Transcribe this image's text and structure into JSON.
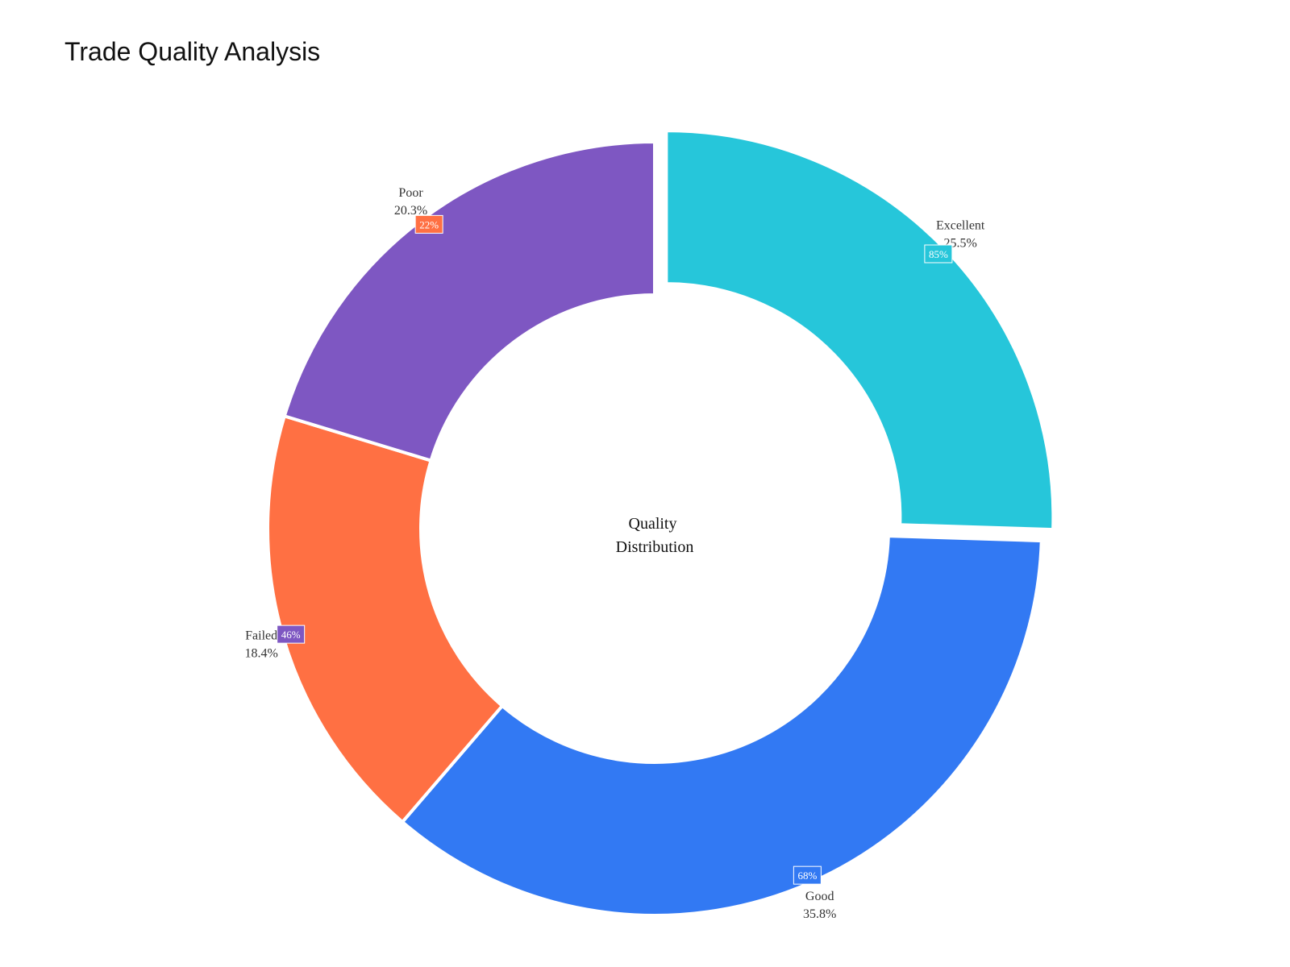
{
  "chart_data": {
    "type": "pie",
    "title": "Trade Quality Analysis",
    "hole_label_lines": [
      "Quality",
      "Distribution"
    ],
    "slices": [
      {
        "name": "Excellent",
        "value": 25.5,
        "pct_label": "25.5%",
        "color": "#26C6DA",
        "pulled": true
      },
      {
        "name": "Good",
        "value": 35.8,
        "pct_label": "35.8%",
        "color": "#3279F3",
        "pulled": false
      },
      {
        "name": "Failed",
        "value": 18.4,
        "pct_label": "18.4%",
        "color": "#FF7043",
        "pulled": false
      },
      {
        "name": "Poor",
        "value": 20.3,
        "pct_label": "20.3%",
        "color": "#7E57C2",
        "pulled": false
      }
    ],
    "annotations": [
      {
        "slice": "Excellent",
        "text": "85%",
        "bgcolor": "#26C6DA"
      },
      {
        "slice": "Good",
        "text": "68%",
        "bgcolor": "#3279F3"
      },
      {
        "slice": "Failed",
        "text": "46%",
        "bgcolor": "#7E57C2"
      },
      {
        "slice": "Poor",
        "text": "22%",
        "bgcolor": "#FF7043"
      }
    ],
    "legend": "none"
  }
}
